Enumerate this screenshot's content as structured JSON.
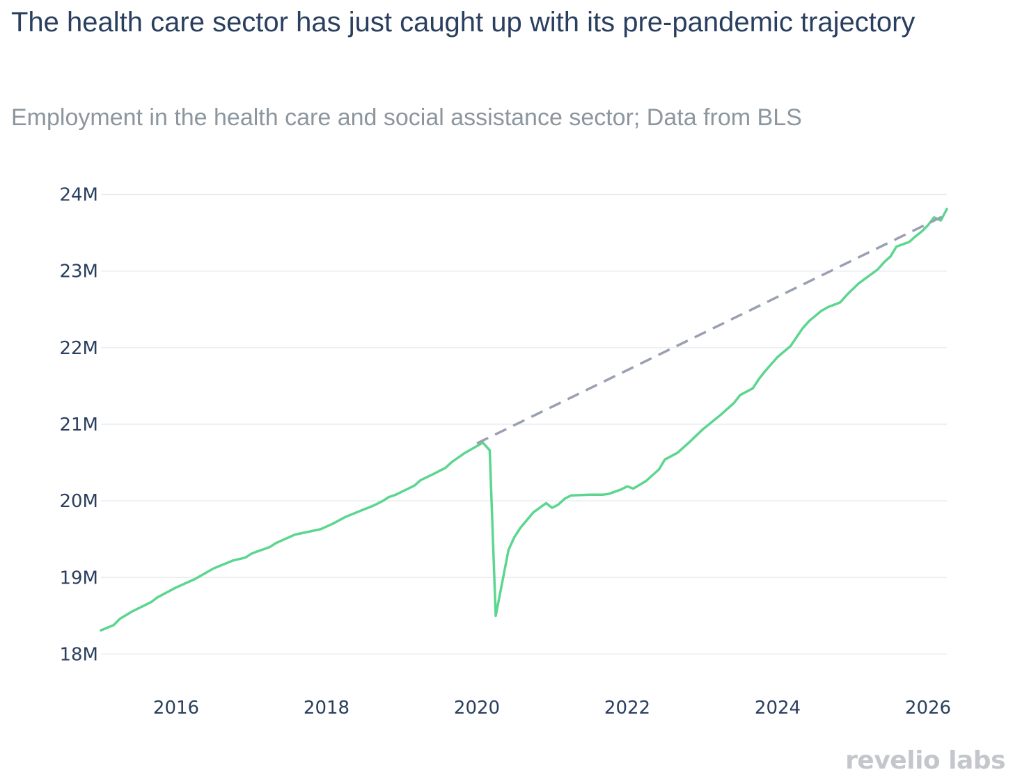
{
  "chart_data": {
    "type": "line",
    "title": "The health care sector has just caught up with its pre-pandemic trajectory",
    "subtitle": "Employment in the health care and social assistance sector; Data from BLS",
    "xlabel": "",
    "ylabel": "",
    "xlim": [
      2015.0,
      2026.25
    ],
    "ylim": [
      17.55,
      24.45
    ],
    "x_ticks": [
      2016,
      2018,
      2020,
      2022,
      2024,
      2026
    ],
    "x_tick_labels": [
      "2016",
      "2018",
      "2020",
      "2022",
      "2024",
      "2026"
    ],
    "y_ticks": [
      18,
      19,
      20,
      21,
      22,
      23,
      24
    ],
    "y_tick_labels": [
      "18M",
      "19M",
      "20M",
      "21M",
      "22M",
      "23M",
      "24M"
    ],
    "grid": true,
    "series": [
      {
        "role": "actual",
        "color": "#5cd68f",
        "style": "solid",
        "x": [
          2015.0,
          2015.17,
          2015.25,
          2015.42,
          2015.67,
          2015.75,
          2016.0,
          2016.25,
          2016.5,
          2016.75,
          2016.92,
          2017.0,
          2017.08,
          2017.17,
          2017.25,
          2017.33,
          2017.42,
          2017.58,
          2017.92,
          2018.08,
          2018.25,
          2018.5,
          2018.58,
          2018.67,
          2018.75,
          2018.83,
          2018.92,
          2019.17,
          2019.25,
          2019.42,
          2019.58,
          2019.67,
          2019.83,
          2020.08,
          2020.17,
          2020.25,
          2020.33,
          2020.42,
          2020.5,
          2020.58,
          2020.75,
          2020.92,
          2021.0,
          2021.08,
          2021.17,
          2021.25,
          2021.5,
          2021.67,
          2021.75,
          2021.92,
          2022.0,
          2022.08,
          2022.25,
          2022.42,
          2022.5,
          2022.67,
          2022.83,
          2023.0,
          2023.25,
          2023.42,
          2023.5,
          2023.67,
          2023.75,
          2023.83,
          2024.0,
          2024.17,
          2024.33,
          2024.42,
          2024.58,
          2024.67,
          2024.83,
          2024.92,
          2025.08,
          2025.33,
          2025.42,
          2025.5,
          2025.58,
          2025.75,
          2025.83,
          2025.92,
          2026.0,
          2026.08,
          2026.17,
          2026.25
        ],
        "values": [
          18.31,
          18.38,
          18.46,
          18.56,
          18.68,
          18.74,
          18.87,
          18.98,
          19.12,
          19.22,
          19.26,
          19.31,
          19.34,
          19.37,
          19.4,
          19.45,
          19.49,
          19.56,
          19.63,
          19.7,
          19.79,
          19.89,
          19.92,
          19.96,
          20.0,
          20.05,
          20.08,
          20.2,
          20.27,
          20.35,
          20.43,
          20.51,
          20.62,
          20.76,
          20.66,
          18.5,
          18.9,
          19.36,
          19.53,
          19.65,
          19.85,
          19.97,
          19.91,
          19.95,
          20.03,
          20.07,
          20.08,
          20.08,
          20.09,
          20.15,
          20.19,
          20.16,
          20.26,
          20.41,
          20.54,
          20.63,
          20.77,
          20.93,
          21.13,
          21.28,
          21.38,
          21.47,
          21.59,
          21.69,
          21.88,
          22.02,
          22.25,
          22.35,
          22.48,
          22.53,
          22.59,
          22.69,
          22.84,
          23.02,
          23.12,
          23.19,
          23.32,
          23.38,
          23.45,
          23.52,
          23.6,
          23.7,
          23.66,
          23.81
        ]
      },
      {
        "role": "pre-pandemic trend",
        "color": "#9aa0b2",
        "style": "dashed",
        "x": [
          2020.0,
          2026.25
        ],
        "values": [
          20.75,
          23.74
        ]
      }
    ]
  },
  "branding": {
    "logo_text": "revelio labs",
    "logo_color": "#c3c7cc"
  }
}
